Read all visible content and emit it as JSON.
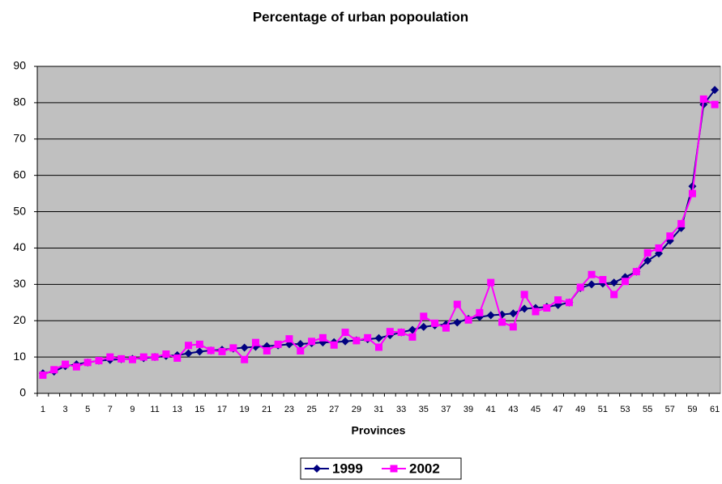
{
  "chart_data": {
    "type": "line",
    "title": "Percentage of urban popoulation",
    "x_label": "Provinces",
    "categories": [
      1,
      null,
      3,
      null,
      5,
      null,
      7,
      null,
      9,
      null,
      11,
      null,
      13,
      null,
      15,
      null,
      17,
      null,
      19,
      null,
      21,
      null,
      23,
      null,
      25,
      null,
      27,
      null,
      29,
      null,
      31,
      null,
      33,
      null,
      35,
      null,
      37,
      null,
      39,
      null,
      41,
      null,
      43,
      null,
      45,
      null,
      47,
      null,
      49,
      null,
      51,
      null,
      53,
      null,
      55,
      null,
      57,
      null,
      59,
      null,
      61
    ],
    "series": [
      {
        "name": "1999",
        "color": "#000080",
        "marker": "diamond",
        "values": [
          5.5,
          6,
          7.5,
          8,
          8.5,
          9,
          9.2,
          9.4,
          9.5,
          9.7,
          10,
          10.3,
          10.5,
          11,
          11.5,
          11.8,
          12,
          12.3,
          12.6,
          12.8,
          13,
          13.2,
          13.5,
          13.6,
          13.8,
          14,
          14.1,
          14.3,
          14.6,
          14.9,
          15.2,
          16,
          16.8,
          17.5,
          18.3,
          18.7,
          19,
          19.5,
          20.5,
          21,
          21.5,
          21.7,
          22,
          23.3,
          23.5,
          23.8,
          24.3,
          25,
          29,
          30,
          30.2,
          30.5,
          32,
          33.5,
          36.5,
          38.5,
          42,
          45.5,
          57,
          79.5,
          83.5
        ]
      },
      {
        "name": "2002",
        "color": "#ff00ff",
        "marker": "square",
        "values": [
          5,
          6.5,
          8,
          7.3,
          8.5,
          9,
          10,
          9.5,
          9.3,
          10,
          10,
          10.8,
          9.7,
          13.2,
          13.5,
          11.8,
          11.5,
          12.5,
          9.3,
          14,
          11.7,
          13.5,
          15,
          11.7,
          14.3,
          15.3,
          13.3,
          16.8,
          14.5,
          15.3,
          12.7,
          17,
          16.8,
          15.5,
          21.2,
          19.3,
          18,
          24.5,
          20.2,
          22.2,
          30.5,
          19.6,
          18.3,
          27.2,
          22.5,
          23.5,
          25.7,
          25,
          29.2,
          32.7,
          31.3,
          27.2,
          30.8,
          33.5,
          38.7,
          40,
          43.3,
          46.7,
          55,
          81,
          79.5
        ]
      }
    ],
    "ylim": [
      0,
      90
    ],
    "yticks": [
      0,
      10,
      20,
      30,
      40,
      50,
      60,
      70,
      80,
      90
    ],
    "grid": true,
    "legend": "bottom"
  }
}
